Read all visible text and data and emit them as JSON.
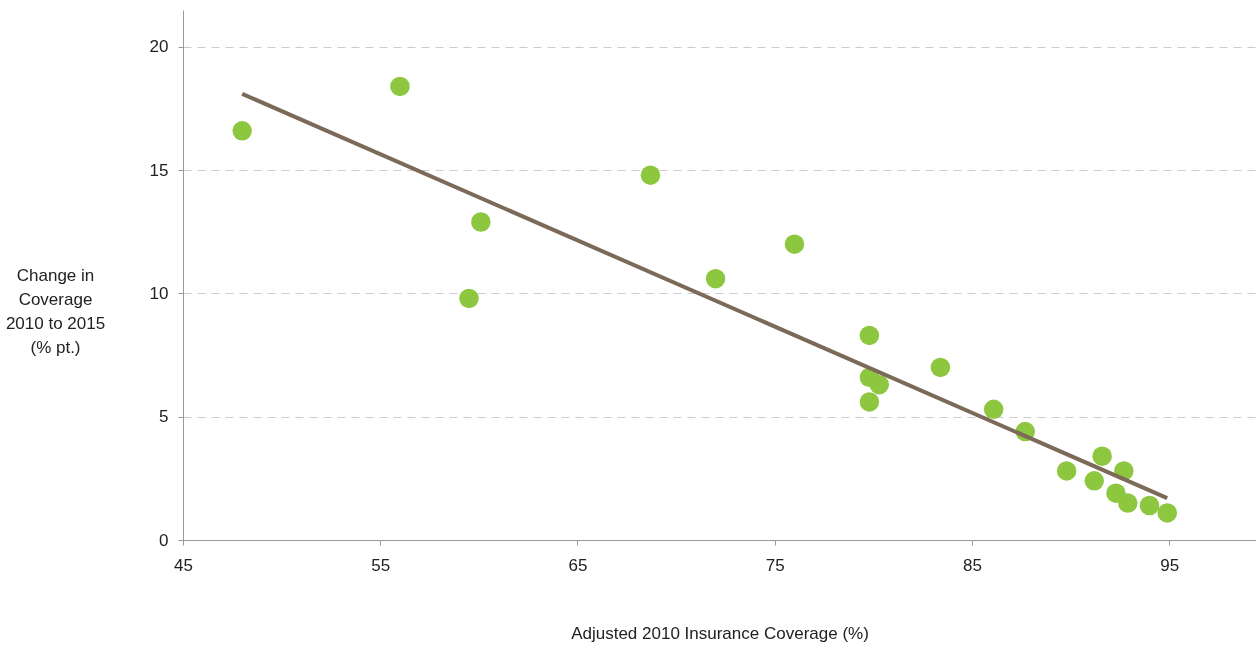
{
  "chart_data": {
    "type": "scatter",
    "xlabel": "Adjusted 2010 Insurance Coverage (%)",
    "ylabel": "Change in\nCoverage\n2010 to 2015\n(% pt.)",
    "xlim": [
      45,
      99.4
    ],
    "ylim": [
      0,
      21.5
    ],
    "xticks": [
      45,
      55,
      65,
      75,
      85,
      95
    ],
    "yticks": [
      0,
      5,
      10,
      15,
      20
    ],
    "grid": "y",
    "series": [
      {
        "color": "#8dc63f",
        "marker": "circle",
        "x": [
          48.0,
          56.0,
          60.1,
          59.5,
          68.7,
          72.0,
          76.0,
          79.8,
          79.8,
          80.3,
          79.8,
          83.4,
          86.1,
          87.7,
          89.8,
          91.6,
          91.2,
          92.7,
          92.3,
          92.9,
          94.0,
          94.9
        ],
        "values": [
          16.6,
          18.4,
          12.9,
          9.8,
          14.8,
          10.6,
          12.0,
          8.3,
          6.6,
          6.3,
          5.6,
          7.0,
          5.3,
          4.4,
          2.8,
          3.4,
          2.4,
          2.8,
          1.9,
          1.5,
          1.4,
          1.1
        ]
      },
      {
        "type": "line",
        "color": "#7b6a58",
        "line_style": "solid",
        "x": [
          48.0,
          94.9
        ],
        "values": [
          18.1,
          1.7
        ]
      }
    ]
  }
}
